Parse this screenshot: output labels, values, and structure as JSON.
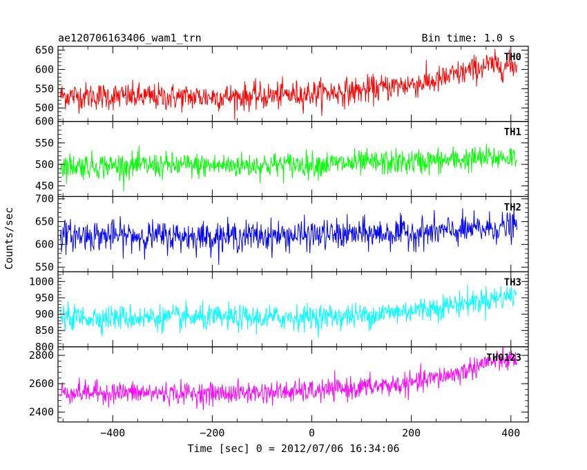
{
  "chart_data": {
    "type": "line",
    "title": "ae120706163406_wam1_trn",
    "subtitle": "Bin time: 1.0 s",
    "xlabel": "Time [sec] 0 = 2012/07/06 16:34:06",
    "ylabel": "Counts/sec",
    "xlim": [
      -510,
      435
    ],
    "x_ticks": [
      -400,
      -200,
      0,
      200,
      400
    ],
    "x_ticks_labels": [
      "−400",
      "−200",
      "0",
      "200",
      "400"
    ],
    "grid": false,
    "x_range_data": [
      -505,
      412
    ],
    "panels": [
      {
        "name": "TH0",
        "color": "#ff0000",
        "ylim": [
          465,
          660
        ],
        "y_ticks": [
          500,
          550,
          600,
          650
        ],
        "y_ticks_labels": [
          "500",
          "550",
          "600",
          "650"
        ],
        "trend": [
          [
            -505,
            532
          ],
          [
            -300,
            528
          ],
          [
            -100,
            530
          ],
          [
            100,
            545
          ],
          [
            250,
            570
          ],
          [
            350,
            610
          ],
          [
            412,
            610
          ]
        ],
        "noise": 32
      },
      {
        "name": "TH1",
        "color": "#00ff00",
        "ylim": [
          425,
          600
        ],
        "y_ticks": [
          450,
          500,
          550,
          600
        ],
        "y_ticks_labels": [
          "450",
          "500",
          "550",
          "600"
        ],
        "trend": [
          [
            -505,
            497
          ],
          [
            -200,
            497
          ],
          [
            0,
            500
          ],
          [
            200,
            505
          ],
          [
            412,
            518
          ]
        ],
        "noise": 27
      },
      {
        "name": "TH2",
        "color": "#0000ff",
        "ylim": [
          540,
          705
        ],
        "y_ticks": [
          550,
          600,
          650,
          700
        ],
        "y_ticks_labels": [
          "550",
          "600",
          "650",
          "700"
        ],
        "trend": [
          [
            -505,
            620
          ],
          [
            -200,
            617
          ],
          [
            0,
            620
          ],
          [
            200,
            625
          ],
          [
            300,
            630
          ],
          [
            412,
            640
          ]
        ],
        "noise": 30
      },
      {
        "name": "TH3",
        "color": "#00ffff",
        "ylim": [
          800,
          1030
        ],
        "y_ticks": [
          800,
          850,
          900,
          950,
          1000
        ],
        "y_ticks_labels": [
          "800",
          "850",
          "900",
          "950",
          "1000"
        ],
        "trend": [
          [
            -505,
            890
          ],
          [
            -100,
            888
          ],
          [
            100,
            895
          ],
          [
            250,
            920
          ],
          [
            412,
            960
          ]
        ],
        "noise": 35
      },
      {
        "name": "TH0123",
        "color": "#ff00ff",
        "ylim": [
          2330,
          2860
        ],
        "y_ticks": [
          2400,
          2600,
          2800
        ],
        "y_ticks_labels": [
          "2400",
          "2600",
          "2800"
        ],
        "trend": [
          [
            -505,
            2540
          ],
          [
            -200,
            2530
          ],
          [
            0,
            2545
          ],
          [
            200,
            2600
          ],
          [
            300,
            2680
          ],
          [
            350,
            2750
          ],
          [
            412,
            2770
          ]
        ],
        "noise": 70
      }
    ]
  }
}
